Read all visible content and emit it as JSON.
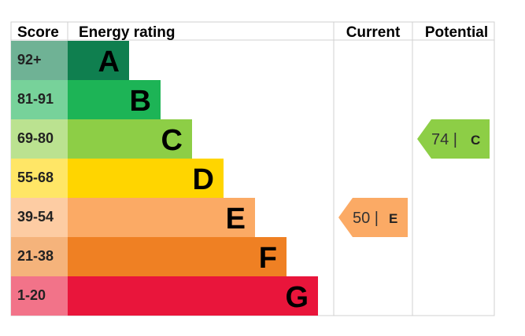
{
  "chart_data": {
    "type": "table",
    "headers": {
      "score": "Score",
      "rating": "Energy rating",
      "current": "Current",
      "potential": "Potential"
    },
    "bands": [
      {
        "score": "92+",
        "letter": "A",
        "color": "#0f7f4f"
      },
      {
        "score": "81-91",
        "letter": "B",
        "color": "#1db456"
      },
      {
        "score": "69-80",
        "letter": "C",
        "color": "#8dce46"
      },
      {
        "score": "55-68",
        "letter": "D",
        "color": "#ffd500"
      },
      {
        "score": "39-54",
        "letter": "E",
        "color": "#fbaa65"
      },
      {
        "score": "21-38",
        "letter": "F",
        "color": "#ef8023"
      },
      {
        "score": "1-20",
        "letter": "G",
        "color": "#e9153b"
      }
    ],
    "current": {
      "value": 50,
      "letter": "E",
      "band_index": 4,
      "label": "50 | ",
      "color": "#fbaa65"
    },
    "potential": {
      "value": 74,
      "letter": "C",
      "band_index": 2,
      "label": "74 | ",
      "color": "#8dce46"
    }
  }
}
